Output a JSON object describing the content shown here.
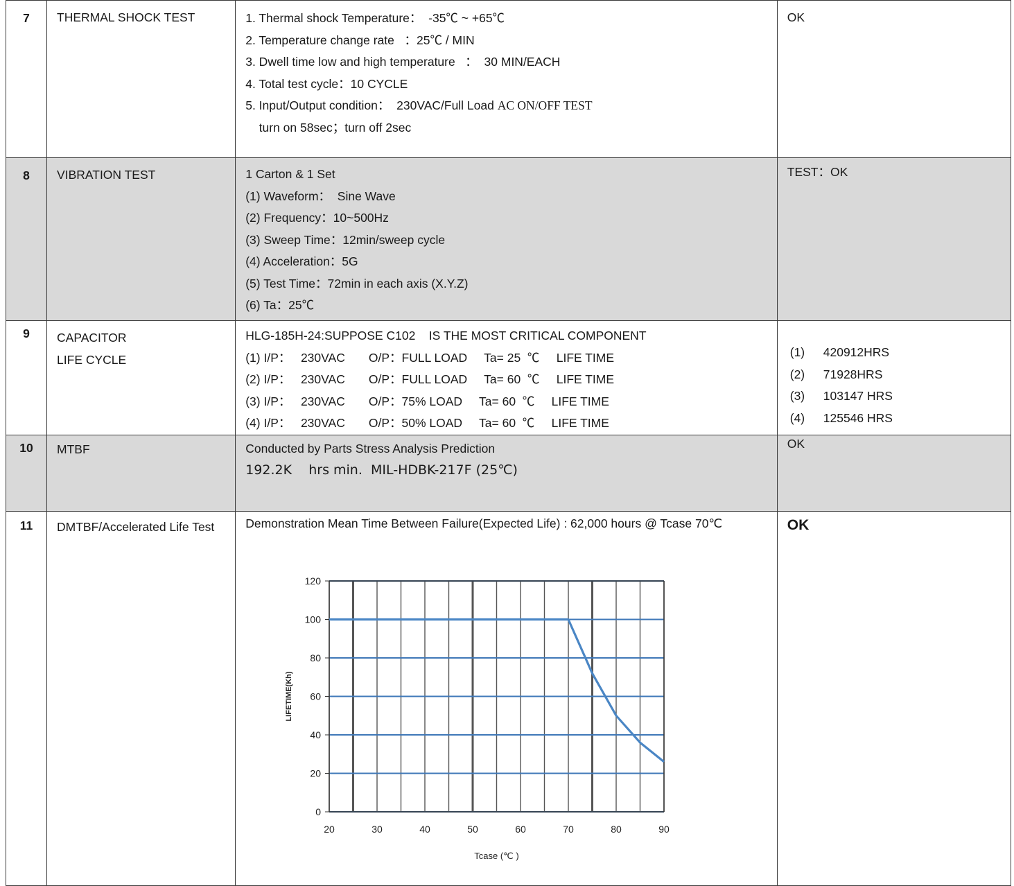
{
  "rows": [
    {
      "no": "7",
      "item": "THERMAL SHOCK TEST",
      "desc": [
        "1. Thermal shock Temperature：  -35℃ ~ +65℃",
        "2. Temperature change rate   ：25℃ / MIN",
        "3. Dwell time low and high temperature   ：  30 MIN/EACH",
        "4. Total test cycle：10 CYCLE",
        "5. Input/Output condition：  230VAC/Full Load ",
        "    turn on 58sec；turn off 2sec"
      ],
      "desc_serif_tail": "AC ON/OFF TEST",
      "result": "OK"
    },
    {
      "no": "8",
      "item": "VIBRATION TEST",
      "desc": [
        "1 Carton & 1 Set",
        "(1) Waveform：  Sine Wave",
        "(2) Frequency：10~500Hz",
        "(3) Sweep Time：12min/sweep cycle",
        "(4) Acceleration：5G",
        "(5) Test Time：72min in each axis (X.Y.Z)",
        "(6) Ta：25℃"
      ],
      "result": "TEST：OK"
    },
    {
      "no": "9",
      "item_lines": [
        "CAPACITOR",
        "LIFE CYCLE"
      ],
      "desc": [
        "HLG-185H-24:SUPPOSE C102    IS THE MOST CRITICAL COMPONENT",
        "(1) I/P：   230VAC       O/P：FULL LOAD     Ta= 25  ℃     LIFE TIME",
        "(2) I/P：   230VAC       O/P：FULL LOAD     Ta= 60  ℃     LIFE TIME",
        "(3) I/P：   230VAC       O/P：75% LOAD     Ta= 60  ℃     LIFE TIME",
        "(4) I/P：   230VAC       O/P：50% LOAD     Ta= 60  ℃     LIFE TIME"
      ],
      "results": [
        {
          "n": "(1)",
          "v": "420912HRS"
        },
        {
          "n": "(2)",
          "v": "71928HRS"
        },
        {
          "n": "(3)",
          "v": "103147 HRS"
        },
        {
          "n": "(4)",
          "v": "125546 HRS"
        }
      ]
    },
    {
      "no": "10",
      "item": "MTBF",
      "desc_line1": "Conducted by Parts Stress Analysis Prediction",
      "desc_line2": "192.2K    hrs min.  MIL-HDBK-217F (25℃)",
      "result": "OK"
    },
    {
      "no": "11",
      "item": "DMTBF/Accelerated Life Test",
      "desc_line1": "Demonstration Mean Time Between Failure(Expected Life) : 62,000 hours @ Tcase 70℃",
      "result": "OK"
    }
  ],
  "chart_data": {
    "type": "line",
    "xlabel": "Tcase (℃ )",
    "ylabel": "LIFETIME(Kh)",
    "x_ticks": [
      "20",
      "30",
      "40",
      "50",
      "60",
      "70",
      "80",
      "90"
    ],
    "y_ticks": [
      "0",
      "20",
      "40",
      "60",
      "80",
      "100",
      "120"
    ],
    "xlim": [
      20,
      90
    ],
    "ylim": [
      0,
      120
    ],
    "grid": true,
    "line_color": "#4a86c5",
    "grid_h_color": "#3f78b8",
    "grid_v_color": "#555555",
    "series": [
      {
        "x": [
          20,
          30,
          40,
          50,
          60,
          70,
          75,
          80,
          85,
          90
        ],
        "values": [
          100,
          100,
          100,
          100,
          100,
          100,
          72,
          50,
          36,
          26
        ]
      }
    ]
  }
}
